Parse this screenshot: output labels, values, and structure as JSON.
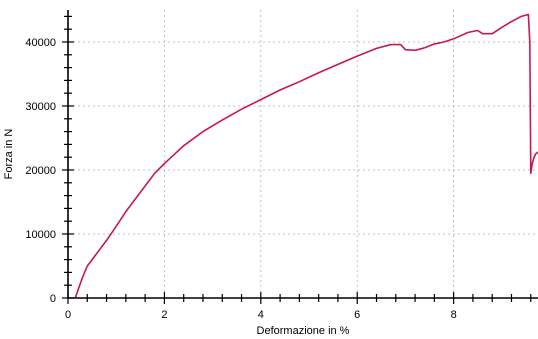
{
  "chart_data": {
    "type": "line",
    "title": "",
    "xlabel": "Deformazione in %",
    "ylabel": "Forza in N",
    "xlim": [
      0,
      9.75
    ],
    "ylim": [
      0,
      45000
    ],
    "grid": true,
    "xticks": [
      {
        "value": 0,
        "label": "0"
      },
      {
        "value": 2,
        "label": "2"
      },
      {
        "value": 4,
        "label": "4"
      },
      {
        "value": 6,
        "label": "6"
      },
      {
        "value": 8,
        "label": "8"
      }
    ],
    "yticks": [
      {
        "value": 0,
        "label": "0"
      },
      {
        "value": 10000,
        "label": "10000"
      },
      {
        "value": 20000,
        "label": "20000"
      },
      {
        "value": 30000,
        "label": "30000"
      },
      {
        "value": 40000,
        "label": "40000"
      }
    ],
    "x_minor_step": 0.4,
    "y_minor_step": 2000,
    "series": [
      {
        "color": "#c8184a",
        "points": [
          [
            0.15,
            0
          ],
          [
            0.22,
            1500
          ],
          [
            0.3,
            3200
          ],
          [
            0.4,
            5000
          ],
          [
            0.5,
            6000
          ],
          [
            0.6,
            7000
          ],
          [
            0.8,
            9000
          ],
          [
            1.0,
            11200
          ],
          [
            1.2,
            13500
          ],
          [
            1.5,
            16500
          ],
          [
            1.8,
            19500
          ],
          [
            2.0,
            21000
          ],
          [
            2.4,
            23800
          ],
          [
            2.8,
            26000
          ],
          [
            3.2,
            27800
          ],
          [
            3.6,
            29500
          ],
          [
            4.0,
            31000
          ],
          [
            4.4,
            32500
          ],
          [
            4.8,
            33800
          ],
          [
            5.2,
            35200
          ],
          [
            5.6,
            36500
          ],
          [
            6.0,
            37800
          ],
          [
            6.4,
            39000
          ],
          [
            6.7,
            39600
          ],
          [
            6.9,
            39600
          ],
          [
            7.0,
            38800
          ],
          [
            7.2,
            38700
          ],
          [
            7.4,
            39100
          ],
          [
            7.6,
            39700
          ],
          [
            7.8,
            40000
          ],
          [
            8.0,
            40500
          ],
          [
            8.3,
            41500
          ],
          [
            8.5,
            41800
          ],
          [
            8.6,
            41300
          ],
          [
            8.8,
            41300
          ],
          [
            9.0,
            42300
          ],
          [
            9.2,
            43200
          ],
          [
            9.4,
            44000
          ],
          [
            9.55,
            44300
          ],
          [
            9.58,
            40000
          ],
          [
            9.6,
            19500
          ],
          [
            9.63,
            21000
          ],
          [
            9.66,
            21800
          ],
          [
            9.7,
            22500
          ],
          [
            9.75,
            22800
          ]
        ]
      }
    ]
  }
}
